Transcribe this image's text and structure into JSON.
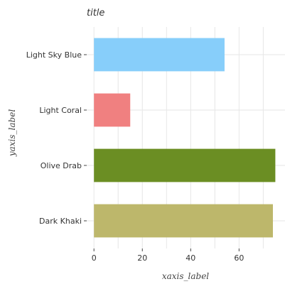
{
  "chart_data": {
    "type": "bar",
    "orientation": "horizontal",
    "title": "title",
    "xlabel": "xaxis_label",
    "ylabel": "yaxis_label",
    "xlim": [
      -3,
      79
    ],
    "xticks": [
      0,
      20,
      40,
      60
    ],
    "grid": true,
    "categories": [
      "Dark Khaki",
      "Olive Drab",
      "Light Coral",
      "Light Sky Blue"
    ],
    "values": [
      74,
      75,
      15,
      54
    ],
    "colors": [
      "#bdb76b",
      "#6b8e23",
      "#f08080",
      "#87cefa"
    ]
  }
}
